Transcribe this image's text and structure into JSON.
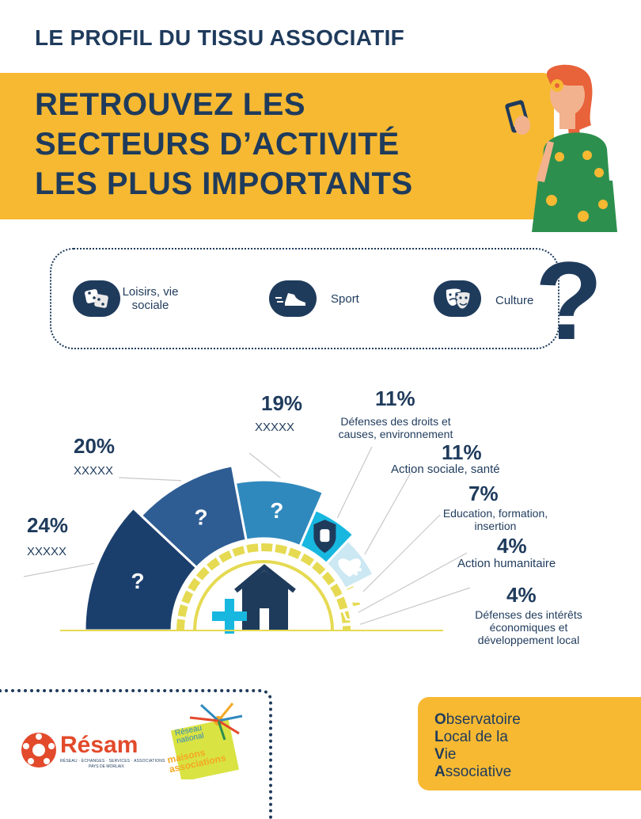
{
  "header": {
    "top_title": "LE PROFIL DU TISSU ASSOCIATIF",
    "banner_line1": "RETROUVEZ LES",
    "banner_line2": "SECTEURS D’ACTIVITÉ",
    "banner_line3": "LES PLUS IMPORTANTS"
  },
  "top3": {
    "items": [
      {
        "label_line1": "Loisirs, vie",
        "label_line2": "sociale",
        "icon": "dice-icon"
      },
      {
        "label_line1": "Sport",
        "icon": "sneaker-icon"
      },
      {
        "label_line1": "Culture",
        "icon": "theater-masks-icon"
      }
    ],
    "question": "?"
  },
  "chart_data": {
    "type": "semi-donut",
    "unit": "%",
    "segments": [
      {
        "value": 24,
        "pct": "24%",
        "label": "XXXXX",
        "mark": "?",
        "color": "#1b3f6d"
      },
      {
        "value": 20,
        "pct": "20%",
        "label": "XXXXX",
        "mark": "?",
        "color": "#2e5d93"
      },
      {
        "value": 19,
        "pct": "19%",
        "label": "XXXXX",
        "mark": "?",
        "color": "#3089bd"
      },
      {
        "value": 11,
        "pct": "11%",
        "label": "Défenses des droits et causes, environnement",
        "icon": "hand-shield-icon",
        "color": "#17b7e0"
      },
      {
        "value": 11,
        "pct": "11%",
        "label": "Action sociale, santé",
        "icon": "heart-cross-icon",
        "color": "#cbe8f3"
      },
      {
        "value": 7,
        "pct": "7%",
        "label": "Education, formation, insertion",
        "icon": "graduation-cap-icon",
        "color": "#e5da52"
      },
      {
        "value": 4,
        "pct": "4%",
        "label": "Action humanitaire",
        "icon": "hands-heart-icon",
        "color": "#f4a824"
      },
      {
        "value": 4,
        "pct": "4%",
        "label": "Défenses des intérêts économiques et développement local",
        "color": "#ec6d1f"
      }
    ],
    "center_icon": "house-plus-icon"
  },
  "footer": {
    "resam_name": "Résam",
    "resam_tagline": "RÉSEAU · ÉCHANGES · SERVICES · ASSOCIATIONS",
    "resam_sub": "PAYS DE MORLAIX",
    "rnma_l1": "Réseau",
    "rnma_l2": "national",
    "rnma_l3": "maisons",
    "rnma_l4": "associations",
    "olva": [
      {
        "initial": "O",
        "rest": "bservatoire"
      },
      {
        "initial": "L",
        "rest": "ocal de la"
      },
      {
        "initial": "V",
        "rest": "ie"
      },
      {
        "initial": "A",
        "rest": "ssociative"
      }
    ]
  }
}
